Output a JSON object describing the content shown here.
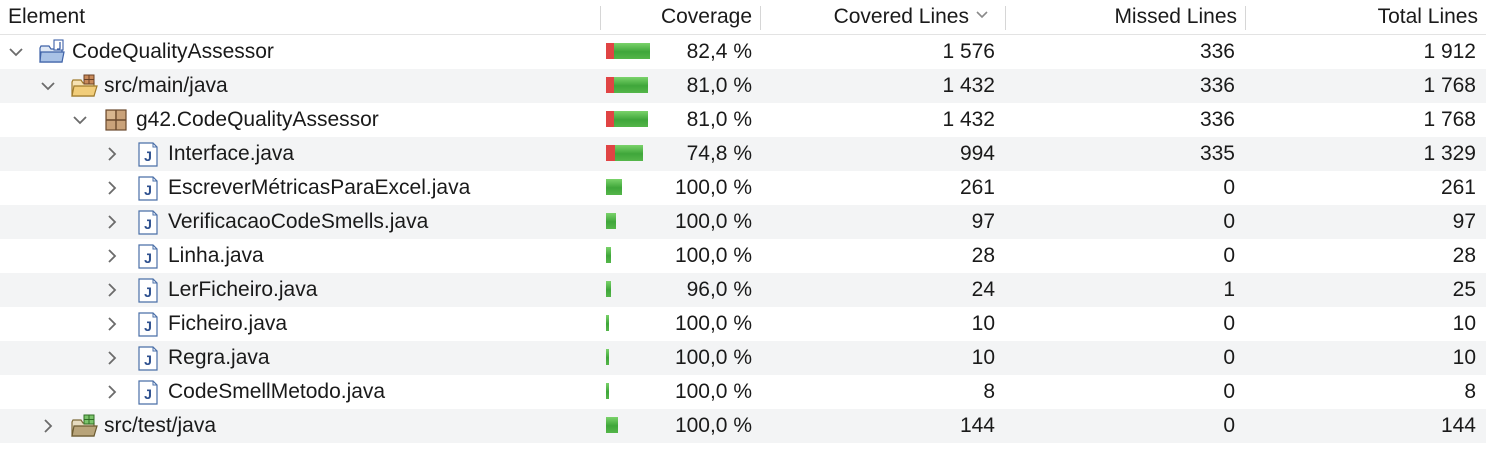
{
  "columns": {
    "element": "Element",
    "coverage": "Coverage",
    "covered_lines": "Covered Lines",
    "missed_lines": "Missed Lines",
    "total_lines": "Total Lines"
  },
  "colors": {
    "covered": "#3fa63a",
    "missed": "#e04444"
  },
  "rows": [
    {
      "level": 0,
      "expanded": true,
      "icon": "project-folder-icon",
      "name": "CodeQualityAssessor",
      "coverage": "82,4 %",
      "coverage_fraction": 0.824,
      "covered": "1 576",
      "missed": "336",
      "total": "1 912"
    },
    {
      "level": 1,
      "expanded": true,
      "icon": "source-folder-icon",
      "name": "src/main/java",
      "coverage": "81,0 %",
      "coverage_fraction": 0.81,
      "covered": "1 432",
      "missed": "336",
      "total": "1 768"
    },
    {
      "level": 2,
      "expanded": true,
      "icon": "package-icon",
      "name": "g42.CodeQualityAssessor",
      "coverage": "81,0 %",
      "coverage_fraction": 0.81,
      "covered": "1 432",
      "missed": "336",
      "total": "1 768"
    },
    {
      "level": 3,
      "expanded": false,
      "icon": "java-file-icon",
      "name": "Interface.java",
      "coverage": "74,8 %",
      "coverage_fraction": 0.748,
      "covered": "994",
      "missed": "335",
      "total": "1 329"
    },
    {
      "level": 3,
      "expanded": false,
      "icon": "java-file-icon",
      "name": "EscreverMétricasParaExcel.java",
      "coverage": "100,0 %",
      "coverage_fraction": 1.0,
      "covered": "261",
      "missed": "0",
      "total": "261"
    },
    {
      "level": 3,
      "expanded": false,
      "icon": "java-file-icon",
      "name": "VerificacaoCodeSmells.java",
      "coverage": "100,0 %",
      "coverage_fraction": 1.0,
      "covered": "97",
      "missed": "0",
      "total": "97"
    },
    {
      "level": 3,
      "expanded": false,
      "icon": "java-file-icon",
      "name": "Linha.java",
      "coverage": "100,0 %",
      "coverage_fraction": 1.0,
      "covered": "28",
      "missed": "0",
      "total": "28"
    },
    {
      "level": 3,
      "expanded": false,
      "icon": "java-file-icon",
      "name": "LerFicheiro.java",
      "coverage": "96,0 %",
      "coverage_fraction": 0.96,
      "covered": "24",
      "missed": "1",
      "total": "25"
    },
    {
      "level": 3,
      "expanded": false,
      "icon": "java-file-icon",
      "name": "Ficheiro.java",
      "coverage": "100,0 %",
      "coverage_fraction": 1.0,
      "covered": "10",
      "missed": "0",
      "total": "10"
    },
    {
      "level": 3,
      "expanded": false,
      "icon": "java-file-icon",
      "name": "Regra.java",
      "coverage": "100,0 %",
      "coverage_fraction": 1.0,
      "covered": "10",
      "missed": "0",
      "total": "10"
    },
    {
      "level": 3,
      "expanded": false,
      "icon": "java-file-icon",
      "name": "CodeSmellMetodo.java",
      "coverage": "100,0 %",
      "coverage_fraction": 1.0,
      "covered": "8",
      "missed": "0",
      "total": "8"
    },
    {
      "level": 1,
      "expanded": false,
      "icon": "test-folder-icon",
      "name": "src/test/java",
      "coverage": "100,0 %",
      "coverage_fraction": 1.0,
      "covered": "144",
      "missed": "0",
      "total": "144"
    }
  ]
}
